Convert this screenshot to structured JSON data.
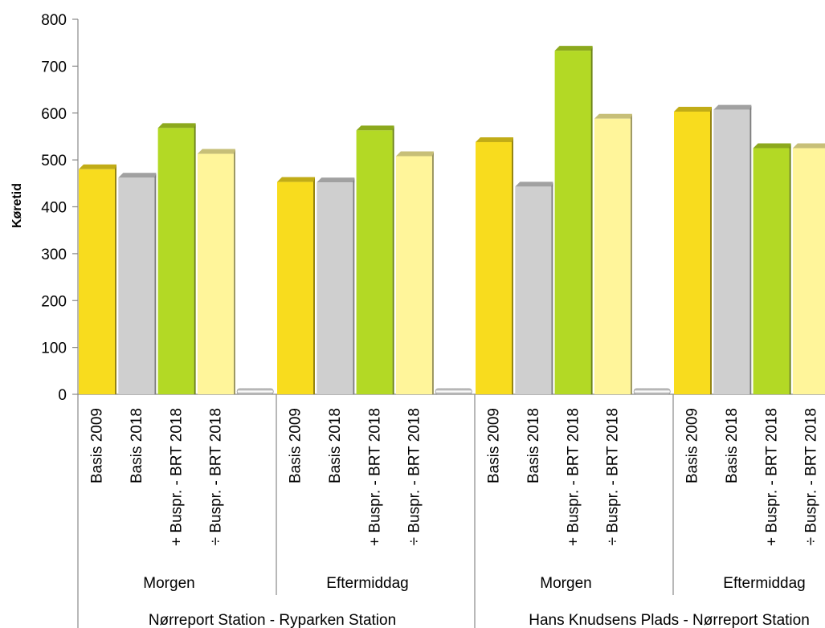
{
  "chart_data": {
    "type": "bar",
    "ylabel": "Køretid",
    "ylim": [
      0,
      800
    ],
    "yticks": [
      0,
      100,
      200,
      300,
      400,
      500,
      600,
      700,
      800
    ],
    "grid": false,
    "legend": "none",
    "series_labels": [
      "Basis 2009",
      "Basis 2018",
      "+ Buspr. - BRT 2018",
      "÷ Buspr. - BRT 2018"
    ],
    "series_colors": [
      "#F8DC1E",
      "#CFCFCF",
      "#B3D925",
      "#FFF59A"
    ],
    "groups": [
      {
        "route": "Nørreport Station - Ryparken Station",
        "period": "Morgen",
        "values": [
          480,
          462,
          568,
          513
        ]
      },
      {
        "route": "Nørreport Station - Ryparken Station",
        "period": "Eftermiddag",
        "values": [
          453,
          452,
          563,
          508
        ]
      },
      {
        "route": "Hans Knudsens Plads - Nørreport Station",
        "period": "Morgen",
        "values": [
          538,
          443,
          733,
          588
        ]
      },
      {
        "route": "Hans Knudsens Plads - Nørreport Station",
        "period": "Eftermiddag",
        "values": [
          603,
          607,
          525,
          525
        ]
      }
    ],
    "routes": [
      "Nørreport Station - Ryparken Station",
      "Hans Knudsens Plads - Nørreport Station"
    ]
  }
}
